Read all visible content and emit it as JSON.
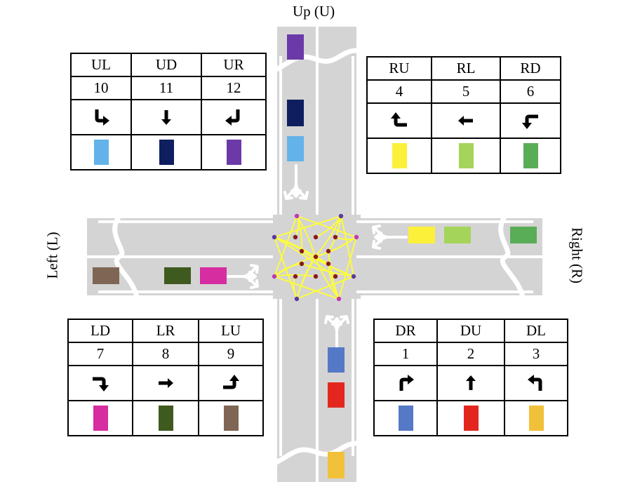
{
  "directions": {
    "up": "Up (U)",
    "left": "Left (L)",
    "right": "Right (R)"
  },
  "legends": [
    {
      "id": "up",
      "items": [
        {
          "name": "UL",
          "num": "10",
          "color": "#63b3ea",
          "turn": "left",
          "approach": "down"
        },
        {
          "name": "UD",
          "num": "11",
          "color": "#0e1e5e",
          "turn": "straight",
          "approach": "down"
        },
        {
          "name": "UR",
          "num": "12",
          "color": "#6b3aa8",
          "turn": "right",
          "approach": "down"
        }
      ]
    },
    {
      "id": "right",
      "items": [
        {
          "name": "RU",
          "num": "4",
          "color": "#fdf03a",
          "turn": "right",
          "approach": "left"
        },
        {
          "name": "RL",
          "num": "5",
          "color": "#a5d45a",
          "turn": "straight",
          "approach": "left"
        },
        {
          "name": "RD",
          "num": "6",
          "color": "#5aad57",
          "turn": "left",
          "approach": "left"
        }
      ]
    },
    {
      "id": "left",
      "items": [
        {
          "name": "LD",
          "num": "7",
          "color": "#d62da1",
          "turn": "right",
          "approach": "right"
        },
        {
          "name": "LR",
          "num": "8",
          "color": "#3f5a1e",
          "turn": "straight",
          "approach": "right"
        },
        {
          "name": "LU",
          "num": "9",
          "color": "#7f6654",
          "turn": "left",
          "approach": "right"
        }
      ]
    },
    {
      "id": "down",
      "items": [
        {
          "name": "DR",
          "num": "1",
          "color": "#5579c7",
          "turn": "right",
          "approach": "up"
        },
        {
          "name": "DU",
          "num": "2",
          "color": "#e3271e",
          "turn": "straight",
          "approach": "up"
        },
        {
          "name": "DL",
          "num": "3",
          "color": "#f1c13a",
          "turn": "left",
          "approach": "up"
        }
      ]
    }
  ],
  "road": {
    "surface_color": "#d4d4d4",
    "marking_color": "#ffffff",
    "conflict_color": "#ffff33",
    "conflict_point_color": "#8b1a1a",
    "entry_point_color": "#c03ab2",
    "exit_point_color": "#5b3aa0"
  },
  "vehicles": [
    {
      "id": "UR",
      "color": "#6b3aa8",
      "lane": "up",
      "slot": 0
    },
    {
      "id": "UD",
      "color": "#0e1e5e",
      "lane": "up",
      "slot": 1
    },
    {
      "id": "UL",
      "color": "#63b3ea",
      "lane": "up",
      "slot": 2
    },
    {
      "id": "RU",
      "color": "#fdf03a",
      "lane": "right",
      "slot": 0
    },
    {
      "id": "RL",
      "color": "#a5d45a",
      "lane": "right",
      "slot": 1
    },
    {
      "id": "RD",
      "color": "#5aad57",
      "lane": "right",
      "slot": 2
    },
    {
      "id": "LU",
      "color": "#7f6654",
      "lane": "left",
      "slot": 2
    },
    {
      "id": "LR",
      "color": "#3f5a1e",
      "lane": "left",
      "slot": 1
    },
    {
      "id": "LD",
      "color": "#d62da1",
      "lane": "left",
      "slot": 0
    },
    {
      "id": "DR",
      "color": "#5579c7",
      "lane": "down",
      "slot": 0
    },
    {
      "id": "DU",
      "color": "#e3271e",
      "lane": "down",
      "slot": 1
    },
    {
      "id": "DL",
      "color": "#f1c13a",
      "lane": "down",
      "slot": 2
    }
  ]
}
